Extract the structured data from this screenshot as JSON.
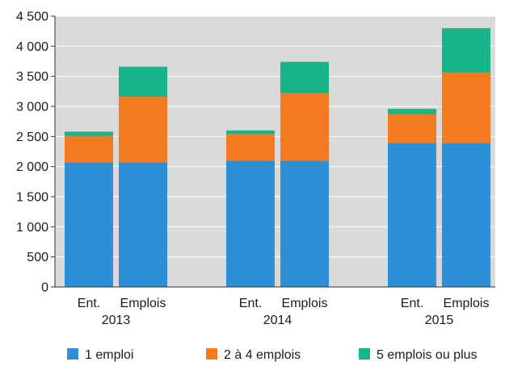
{
  "chart_data": {
    "type": "bar",
    "stacked": true,
    "groups": [
      {
        "label": "2013",
        "categories": [
          "Ent.",
          "Emplois"
        ]
      },
      {
        "label": "2014",
        "categories": [
          "Ent.",
          "Emplois"
        ]
      },
      {
        "label": "2015",
        "categories": [
          "Ent.",
          "Emplois"
        ]
      }
    ],
    "series": [
      {
        "name": "1 emploi",
        "color": "#2e8fd6",
        "values": [
          2070,
          2070,
          2100,
          2100,
          2390,
          2390
        ]
      },
      {
        "name": "2 à 4 emplois",
        "color": "#f47b20",
        "values": [
          440,
          1090,
          440,
          1120,
          480,
          1170
        ]
      },
      {
        "name": "5 emplois ou plus",
        "color": "#17b58a",
        "values": [
          70,
          500,
          60,
          520,
          90,
          740
        ]
      }
    ],
    "y_ticks": [
      "0",
      "500",
      "1 000",
      "1 500",
      "2 000",
      "2 500",
      "3 000",
      "3 500",
      "4 000",
      "4 500"
    ],
    "ylim": [
      0,
      4500
    ],
    "grid": true,
    "legend_position": "bottom",
    "plot_background": "#d9d9d9"
  }
}
